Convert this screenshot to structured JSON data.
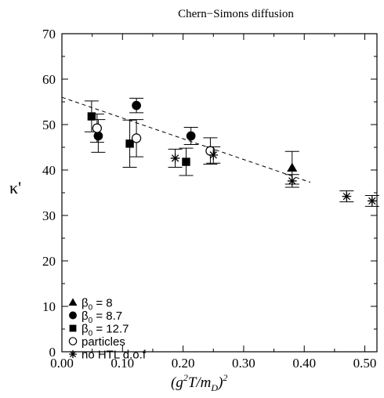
{
  "chart_data": {
    "type": "scatter",
    "title": "Chern−Simons diffusion",
    "ylabel": "κ'",
    "xlabel": {
      "open": "(g",
      "sup1": "2",
      "mid": "T/m",
      "sub": "D",
      "close": ")",
      "sup2": "2"
    },
    "xlim": [
      0.0,
      0.52
    ],
    "ylim": [
      0,
      70
    ],
    "x_ticks": [
      0.0,
      0.1,
      0.2,
      0.3,
      0.4,
      0.5
    ],
    "x_tick_labels": [
      "0.00",
      "0.10",
      "0.20",
      "0.30",
      "0.40",
      "0.50"
    ],
    "y_ticks": [
      0,
      10,
      20,
      30,
      40,
      50,
      60,
      70
    ],
    "y_tick_labels": [
      "0",
      "10",
      "20",
      "30",
      "40",
      "50",
      "60",
      "70"
    ],
    "grid": false,
    "legend_position": "bottom-left",
    "series": [
      {
        "name": "β₀ = 8",
        "legend_main": "β",
        "legend_sub": "0",
        "legend_rest": " = 8",
        "marker": "triangle",
        "points": [
          {
            "x": 0.38,
            "y": 40.5,
            "err": 3.6
          }
        ]
      },
      {
        "name": "β₀ = 8.7",
        "legend_main": "β",
        "legend_sub": "0",
        "legend_rest": " = 8.7",
        "marker": "circle-filled",
        "points": [
          {
            "x": 0.06,
            "y": 47.5,
            "err": 3.6
          },
          {
            "x": 0.123,
            "y": 54.2,
            "err": 1.6
          },
          {
            "x": 0.213,
            "y": 47.5,
            "err": 1.9
          }
        ]
      },
      {
        "name": "β₀ = 12.7",
        "legend_main": "β",
        "legend_sub": "0",
        "legend_rest": " = 12.7",
        "marker": "square",
        "points": [
          {
            "x": 0.049,
            "y": 51.8,
            "err": 3.4
          },
          {
            "x": 0.112,
            "y": 45.8,
            "err": 5.2
          },
          {
            "x": 0.205,
            "y": 41.8,
            "err": 3.0
          }
        ]
      },
      {
        "name": "particles",
        "legend_main": "particles",
        "marker": "circle-open",
        "points": [
          {
            "x": 0.058,
            "y": 49.2,
            "err": 3.1
          },
          {
            "x": 0.123,
            "y": 47.0,
            "err": 4.1
          },
          {
            "x": 0.245,
            "y": 44.2,
            "err": 2.9
          }
        ]
      },
      {
        "name": "no HTL d.o.f",
        "legend_main": "no HTL d.o.f",
        "marker": "asterisk",
        "points": [
          {
            "x": 0.187,
            "y": 42.6,
            "err": 2.0
          },
          {
            "x": 0.25,
            "y": 43.3,
            "err": 1.8
          },
          {
            "x": 0.38,
            "y": 37.6,
            "err": 1.4
          },
          {
            "x": 0.47,
            "y": 34.2,
            "err": 1.2
          },
          {
            "x": 0.512,
            "y": 33.2,
            "err": 1.2
          }
        ]
      }
    ],
    "fit_line": {
      "style": "dashed",
      "x": [
        0.0,
        0.41
      ],
      "y": [
        56.0,
        37.3
      ]
    }
  }
}
